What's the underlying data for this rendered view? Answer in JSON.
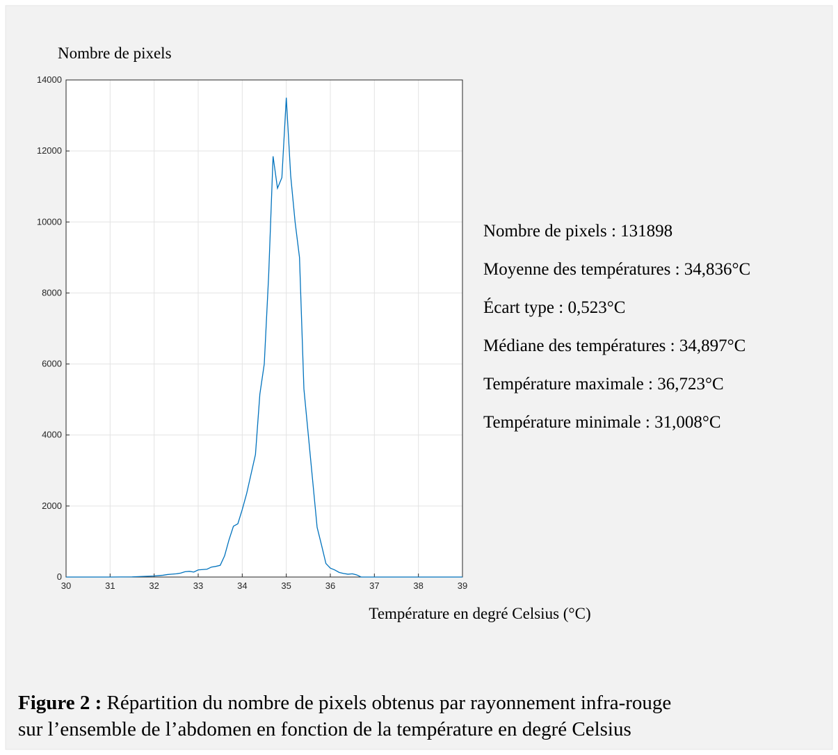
{
  "chart_data": {
    "type": "line",
    "ylabel": "Nombre de pixels",
    "xlabel": "Température en degré Celsius (°C)",
    "x": [
      30,
      31,
      31.5,
      32,
      32.1,
      32.2,
      32.3,
      32.4,
      32.5,
      32.6,
      32.7,
      32.8,
      32.9,
      33,
      33.1,
      33.2,
      33.3,
      33.4,
      33.5,
      33.6,
      33.7,
      33.8,
      33.9,
      34,
      34.1,
      34.2,
      34.3,
      34.4,
      34.5,
      34.6,
      34.7,
      34.8,
      34.9,
      35,
      35.1,
      35.2,
      35.3,
      35.4,
      35.5,
      35.6,
      35.7,
      35.8,
      35.9,
      36,
      36.1,
      36.2,
      36.3,
      36.4,
      36.5,
      36.6,
      36.7,
      37,
      38,
      39
    ],
    "series": [
      {
        "name": "Nombre de pixels",
        "color": "#0072bd",
        "values": [
          0,
          0,
          5,
          30,
          40,
          50,
          70,
          80,
          90,
          110,
          150,
          160,
          140,
          200,
          210,
          220,
          280,
          300,
          330,
          600,
          1050,
          1430,
          1500,
          1900,
          2350,
          2900,
          3450,
          5150,
          6000,
          8500,
          11850,
          10950,
          11250,
          13500,
          11300,
          10000,
          9000,
          5300,
          4000,
          2700,
          1400,
          900,
          380,
          250,
          200,
          130,
          100,
          80,
          90,
          60,
          0,
          0,
          0,
          0
        ]
      }
    ],
    "xlim": [
      30,
      39
    ],
    "xticks": [
      30,
      31,
      32,
      33,
      34,
      35,
      36,
      37,
      38,
      39
    ],
    "ylim": [
      0,
      14000
    ],
    "yticks": [
      0,
      2000,
      4000,
      6000,
      8000,
      10000,
      12000,
      14000
    ],
    "grid": true,
    "annotations": [
      "Nombre de pixels : 131898",
      "Moyenne des températures : 34,836°C",
      "Écart type :  0,523°C",
      "Médiane des températures : 34,897°C",
      "Température maximale : 36,723°C",
      "Température minimale : 31,008°C"
    ]
  },
  "caption": {
    "label": "Figure 2 :",
    "lines": [
      " Répartition du nombre de pixels obtenus par rayonnement infra-rouge",
      "sur l’ensemble de l’abdomen en fonction de la température en degré Celsius"
    ]
  }
}
